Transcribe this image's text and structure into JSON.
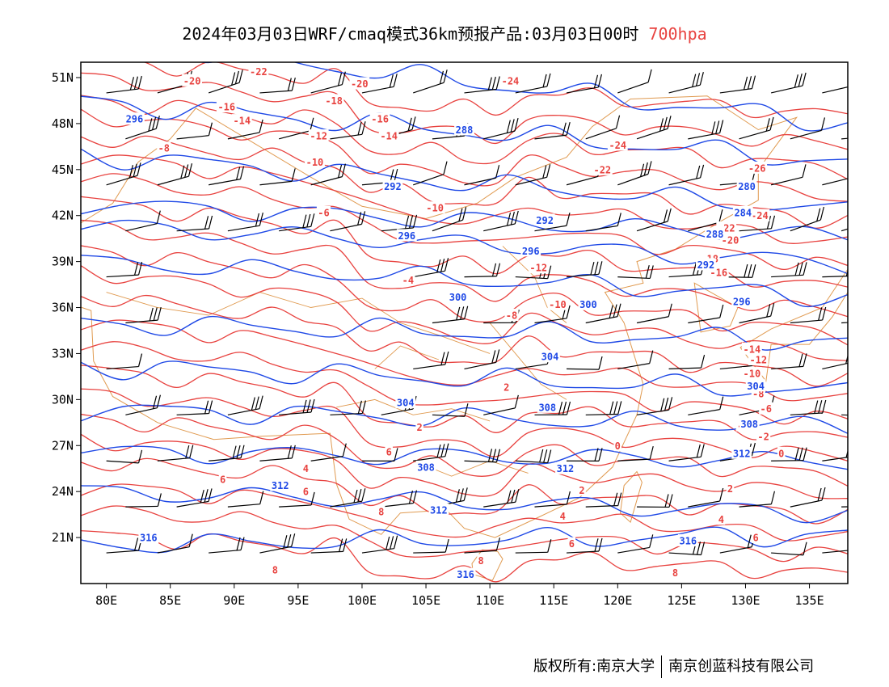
{
  "header": {
    "title": "2024年03月03日WRF/cmaq模式36km预报产品:03月03日00时",
    "level": "700hpa"
  },
  "colors": {
    "temperature": "#e8423f",
    "height": "#1f49e6",
    "border": "#e09a50",
    "barb": "#000000",
    "level": "#e8423f"
  },
  "map": {
    "lon_range": [
      78,
      138
    ],
    "lat_range": [
      18,
      52
    ],
    "x_ticks": [
      {
        "lon": 80,
        "label": "80E"
      },
      {
        "lon": 85,
        "label": "85E"
      },
      {
        "lon": 90,
        "label": "90E"
      },
      {
        "lon": 95,
        "label": "95E"
      },
      {
        "lon": 100,
        "label": "100E"
      },
      {
        "lon": 105,
        "label": "105E"
      },
      {
        "lon": 110,
        "label": "110E"
      },
      {
        "lon": 115,
        "label": "115E"
      },
      {
        "lon": 120,
        "label": "120E"
      },
      {
        "lon": 125,
        "label": "125E"
      },
      {
        "lon": 130,
        "label": "130E"
      },
      {
        "lon": 135,
        "label": "135E"
      }
    ],
    "y_ticks": [
      {
        "lat": 21,
        "label": "21N"
      },
      {
        "lat": 24,
        "label": "24N"
      },
      {
        "lat": 27,
        "label": "27N"
      },
      {
        "lat": 30,
        "label": "30N"
      },
      {
        "lat": 33,
        "label": "33N"
      },
      {
        "lat": 36,
        "label": "36N"
      },
      {
        "lat": 39,
        "label": "39N"
      },
      {
        "lat": 42,
        "label": "42N"
      },
      {
        "lat": 45,
        "label": "45N"
      },
      {
        "lat": 48,
        "label": "48N"
      },
      {
        "lat": 51,
        "label": "51N"
      }
    ],
    "temperature_labels": [
      {
        "text": "-22",
        "lon": 91.9,
        "lat": 51.4
      },
      {
        "text": "-20",
        "lon": 86.7,
        "lat": 50.8
      },
      {
        "text": "-20",
        "lon": 99.8,
        "lat": 50.6
      },
      {
        "text": "-24",
        "lon": 111.6,
        "lat": 50.8
      },
      {
        "text": "-18",
        "lon": 97.8,
        "lat": 49.5
      },
      {
        "text": "-16",
        "lon": 89.4,
        "lat": 49.1
      },
      {
        "text": "-14",
        "lon": 90.6,
        "lat": 48.2
      },
      {
        "text": "-16",
        "lon": 101.4,
        "lat": 48.3
      },
      {
        "text": "-12",
        "lon": 96.6,
        "lat": 47.2
      },
      {
        "text": "-14",
        "lon": 102.1,
        "lat": 47.2
      },
      {
        "text": "-8",
        "lon": 84.5,
        "lat": 46.4
      },
      {
        "text": "-10",
        "lon": 96.3,
        "lat": 45.5
      },
      {
        "text": "-24",
        "lon": 120.0,
        "lat": 46.6
      },
      {
        "text": "-22",
        "lon": 118.8,
        "lat": 45.0
      },
      {
        "text": "-26",
        "lon": 130.9,
        "lat": 45.1
      },
      {
        "text": "-10",
        "lon": 105.7,
        "lat": 42.5
      },
      {
        "text": "-6",
        "lon": 97.0,
        "lat": 42.2
      },
      {
        "text": "-24",
        "lon": 131.1,
        "lat": 42.0
      },
      {
        "text": "-22",
        "lon": 128.5,
        "lat": 41.2
      },
      {
        "text": "-20",
        "lon": 128.8,
        "lat": 40.4
      },
      {
        "text": "-18",
        "lon": 127.2,
        "lat": 39.2
      },
      {
        "text": "-16",
        "lon": 127.9,
        "lat": 38.3
      },
      {
        "text": "-12",
        "lon": 113.8,
        "lat": 38.6
      },
      {
        "text": "-4",
        "lon": 103.6,
        "lat": 37.8
      },
      {
        "text": "-10",
        "lon": 115.3,
        "lat": 36.2
      },
      {
        "text": "-8",
        "lon": 111.7,
        "lat": 35.5
      },
      {
        "text": "-14",
        "lon": 130.5,
        "lat": 33.3
      },
      {
        "text": "-12",
        "lon": 131.0,
        "lat": 32.6
      },
      {
        "text": "-10",
        "lon": 130.5,
        "lat": 31.7
      },
      {
        "text": "2",
        "lon": 111.3,
        "lat": 30.8
      },
      {
        "text": "-8",
        "lon": 131.0,
        "lat": 30.4
      },
      {
        "text": "-6",
        "lon": 131.6,
        "lat": 29.4
      },
      {
        "text": "-4",
        "lon": 129.8,
        "lat": 28.3
      },
      {
        "text": "2",
        "lon": 104.5,
        "lat": 28.2
      },
      {
        "text": "-2",
        "lon": 131.4,
        "lat": 27.6
      },
      {
        "text": "0",
        "lon": 120.0,
        "lat": 27.0
      },
      {
        "text": "6",
        "lon": 102.1,
        "lat": 26.6
      },
      {
        "text": "0",
        "lon": 132.8,
        "lat": 26.5
      },
      {
        "text": "4",
        "lon": 95.6,
        "lat": 25.5
      },
      {
        "text": "6",
        "lon": 89.1,
        "lat": 24.8
      },
      {
        "text": "6",
        "lon": 95.6,
        "lat": 24.0
      },
      {
        "text": "2",
        "lon": 117.2,
        "lat": 24.1
      },
      {
        "text": "2",
        "lon": 128.8,
        "lat": 24.2
      },
      {
        "text": "4",
        "lon": 115.7,
        "lat": 22.4
      },
      {
        "text": "4",
        "lon": 128.1,
        "lat": 22.2
      },
      {
        "text": "8",
        "lon": 101.5,
        "lat": 22.7
      },
      {
        "text": "6",
        "lon": 116.4,
        "lat": 20.6
      },
      {
        "text": "6",
        "lon": 130.8,
        "lat": 21.0
      },
      {
        "text": "8",
        "lon": 109.3,
        "lat": 19.5
      },
      {
        "text": "8",
        "lon": 93.2,
        "lat": 18.9
      },
      {
        "text": "8",
        "lon": 124.5,
        "lat": 18.7
      }
    ],
    "height_labels": [
      {
        "text": "296",
        "lon": 82.2,
        "lat": 48.3
      },
      {
        "text": "288",
        "lon": 108.0,
        "lat": 47.6
      },
      {
        "text": "292",
        "lon": 102.4,
        "lat": 43.9
      },
      {
        "text": "280",
        "lon": 130.1,
        "lat": 43.9
      },
      {
        "text": "292",
        "lon": 114.3,
        "lat": 41.7
      },
      {
        "text": "284",
        "lon": 129.8,
        "lat": 42.2
      },
      {
        "text": "296",
        "lon": 103.5,
        "lat": 40.7
      },
      {
        "text": "288",
        "lon": 127.6,
        "lat": 40.8
      },
      {
        "text": "296",
        "lon": 113.2,
        "lat": 39.7
      },
      {
        "text": "292",
        "lon": 126.9,
        "lat": 38.8
      },
      {
        "text": "300",
        "lon": 107.5,
        "lat": 36.7
      },
      {
        "text": "300",
        "lon": 117.7,
        "lat": 36.2
      },
      {
        "text": "296",
        "lon": 129.7,
        "lat": 36.4
      },
      {
        "text": "304",
        "lon": 114.7,
        "lat": 32.8
      },
      {
        "text": "304",
        "lon": 130.8,
        "lat": 30.9
      },
      {
        "text": "304",
        "lon": 103.4,
        "lat": 29.8
      },
      {
        "text": "308",
        "lon": 114.5,
        "lat": 29.5
      },
      {
        "text": "308",
        "lon": 130.3,
        "lat": 28.4
      },
      {
        "text": "312",
        "lon": 129.7,
        "lat": 26.5
      },
      {
        "text": "308",
        "lon": 105.0,
        "lat": 25.6
      },
      {
        "text": "312",
        "lon": 115.9,
        "lat": 25.5
      },
      {
        "text": "312",
        "lon": 93.6,
        "lat": 24.4
      },
      {
        "text": "312",
        "lon": 106.0,
        "lat": 22.8
      },
      {
        "text": "316",
        "lon": 83.3,
        "lat": 21.0
      },
      {
        "text": "316",
        "lon": 125.5,
        "lat": 20.8
      },
      {
        "text": "316",
        "lon": 108.1,
        "lat": 18.6
      }
    ]
  },
  "footer": {
    "left": "版权所有:南京大学",
    "right": "南京创蓝科技有限公司"
  }
}
